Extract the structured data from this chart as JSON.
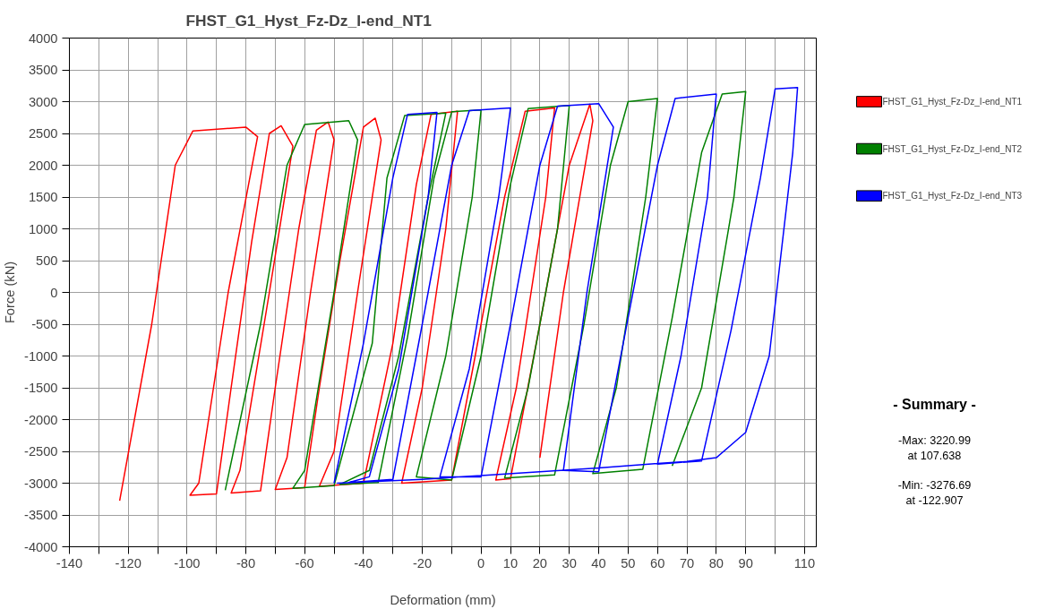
{
  "chart_data": {
    "type": "line",
    "title": "FHST_G1_Hyst_Fz-Dz_I-end_NT1",
    "xlabel": "Deformation (mm)",
    "ylabel": "Force (kN)",
    "xlim": [
      -140,
      114
    ],
    "ylim": [
      -4000,
      4000
    ],
    "xticks": [
      -140,
      {
        "value": -130,
        "label": null
      },
      -120,
      {
        "value": -110,
        "label": null
      },
      -100,
      {
        "value": -90,
        "label": null
      },
      -80,
      {
        "value": -70,
        "label": null
      },
      -60,
      {
        "value": -50,
        "label": null
      },
      -40,
      {
        "value": -30,
        "label": null
      },
      -20,
      {
        "value": -10,
        "label": null
      },
      0,
      10,
      20,
      30,
      40,
      50,
      60,
      70,
      80,
      90,
      {
        "value": 100,
        "label": null
      },
      110
    ],
    "yticks": [
      -4000,
      -3500,
      -3000,
      -2500,
      -2000,
      -1500,
      -1000,
      -500,
      0,
      500,
      1000,
      1500,
      2000,
      2500,
      3000,
      3500,
      4000
    ],
    "grid": true,
    "legend": "top right",
    "marker": "none",
    "line_style": "solid",
    "annotations": [
      "- Summary -",
      "-Max: 3220.99\nat 107.638",
      "-Min: -3276.69\nat -122.907"
    ],
    "series": [
      {
        "name": "FHST_G1_Hyst_Fz-Dz_I-end_NT1",
        "color": "#ff0000",
        "x": [
          -122.907,
          -112,
          -104,
          -98,
          -80,
          -76,
          -86,
          -96,
          -99,
          -90,
          -85,
          -78,
          -72,
          -68,
          -64,
          -72,
          -82,
          -85,
          -75,
          -70,
          -62,
          -56,
          -52,
          -50,
          -58,
          -66,
          -70,
          -60,
          -55,
          -48,
          -40,
          -36,
          -34,
          -42,
          -50,
          -55,
          -40,
          -30,
          -22,
          -17,
          -8,
          -12,
          -20,
          -27,
          -10,
          -2,
          8,
          15,
          25,
          22,
          12,
          5,
          10,
          20,
          30,
          37,
          38,
          28,
          20
        ],
        "values": [
          -3276.69,
          -500,
          2000,
          2540,
          2600,
          2450,
          0,
          -3000,
          -3190,
          -3170,
          -1500,
          800,
          2500,
          2620,
          2300,
          0,
          -2800,
          -3155,
          -3120,
          -1500,
          1000,
          2550,
          2680,
          2400,
          0,
          -2600,
          -3100,
          -3070,
          -1500,
          500,
          2600,
          2740,
          2400,
          0,
          -2500,
          -3050,
          -3000,
          -800,
          1700,
          2800,
          2850,
          1000,
          -1500,
          -3000,
          -2950,
          -1000,
          1500,
          2850,
          2900,
          1500,
          -1500,
          -2950,
          -2930,
          -500,
          2000,
          2960,
          2700,
          0,
          -2600
        ]
      },
      {
        "name": "FHST_G1_Hyst_Fz-Dz_I-end_NT2",
        "color": "#008000",
        "x": [
          -87,
          -75,
          -66,
          -60,
          -45,
          -42,
          -50,
          -60,
          -64,
          -50,
          -37,
          -32,
          -26,
          -12,
          -18,
          -28,
          -38,
          -48,
          -35,
          -25,
          -16,
          -10,
          0,
          -3,
          -12,
          -22,
          -10,
          0,
          10,
          16,
          30,
          26,
          16,
          8,
          25,
          35,
          44,
          50,
          60,
          56,
          46,
          38,
          55,
          65,
          75,
          82,
          90,
          86,
          75,
          65
        ],
        "values": [
          -3110,
          -500,
          2000,
          2640,
          2700,
          2400,
          0,
          -2800,
          -3080,
          -3040,
          -800,
          1800,
          2780,
          2820,
          1500,
          -1000,
          -2800,
          -3020,
          -2990,
          -700,
          1800,
          2840,
          2870,
          1500,
          -1000,
          -2900,
          -2950,
          -1000,
          1700,
          2890,
          2940,
          1000,
          -1500,
          -2920,
          -2870,
          -500,
          2000,
          3000,
          3050,
          1500,
          -1500,
          -2850,
          -2780,
          -400,
          2200,
          3120,
          3160,
          1500,
          -1500,
          -2730
        ]
      },
      {
        "name": "FHST_G1_Hyst_Fz-Dz_I-end_NT3",
        "color": "#0000ff",
        "x": [
          -50,
          -40,
          -30,
          -25,
          -15,
          -18,
          -28,
          -38,
          -45,
          -30,
          -20,
          -10,
          -4,
          10,
          6,
          -4,
          -14,
          0,
          10,
          20,
          26,
          40,
          45,
          36,
          28,
          40,
          50,
          60,
          66,
          80,
          77,
          68,
          60,
          75,
          85,
          95,
          100,
          107.638,
          106,
          98,
          90,
          80,
          70,
          60,
          40,
          20,
          0,
          -20,
          -49
        ],
        "values": [
          -3000,
          -800,
          1800,
          2800,
          2830,
          1500,
          -1200,
          -2900,
          -2990,
          -2940,
          -500,
          2000,
          2860,
          2900,
          1500,
          -1200,
          -2900,
          -2900,
          -500,
          2000,
          2930,
          2970,
          2600,
          0,
          -2800,
          -2820,
          -400,
          2000,
          3050,
          3120,
          1500,
          -1000,
          -2700,
          -2650,
          -600,
          1800,
          3200,
          3220.99,
          2200,
          -1000,
          -2200,
          -2600,
          -2660,
          -2690,
          -2760,
          -2820,
          -2880,
          -2940,
          -3000
        ]
      }
    ]
  }
}
